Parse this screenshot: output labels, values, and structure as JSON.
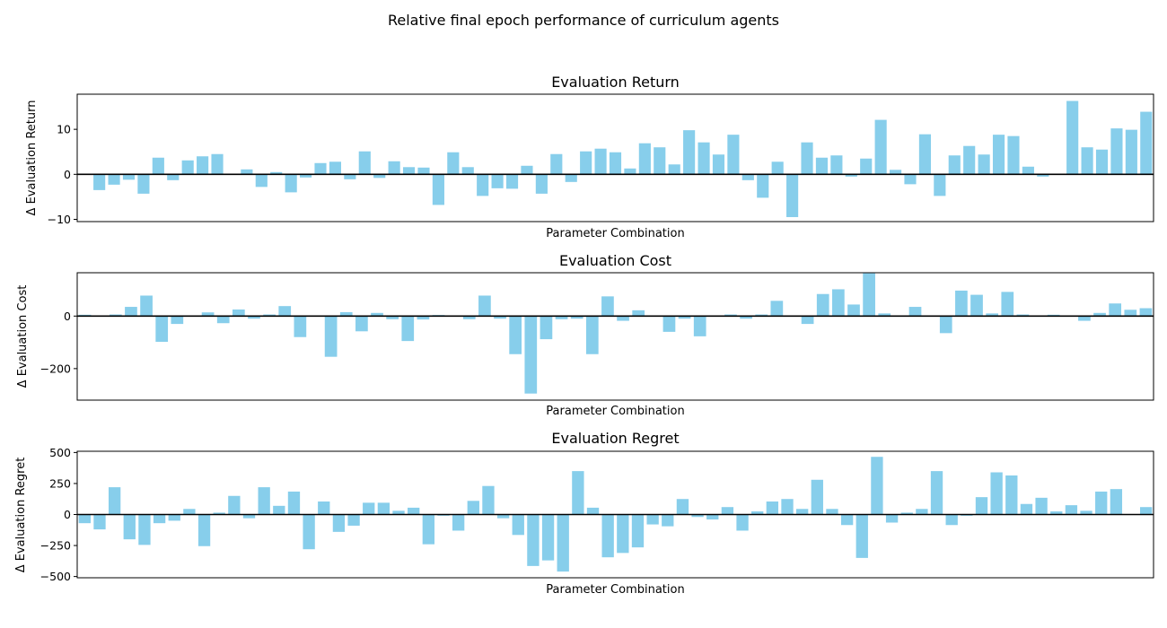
{
  "figure": {
    "suptitle": "Relative final epoch performance of curriculum agents",
    "bar_color": "#87CEEB"
  },
  "chart_data": [
    {
      "type": "bar",
      "title": "Evaluation Return",
      "xlabel": "Parameter Combination",
      "ylabel": "Δ Evaluation Return",
      "ylim": [
        -10.5,
        17.8
      ],
      "yticks": [
        -10,
        0,
        10
      ],
      "ytick_labels": [
        "−10",
        "0",
        "10"
      ],
      "values": [
        0,
        -3.5,
        -2.3,
        -1.2,
        -4.3,
        3.7,
        -1.3,
        3.1,
        4.0,
        4.5,
        0,
        1.1,
        -2.8,
        0.5,
        -4.0,
        -0.7,
        2.5,
        2.8,
        -1.1,
        5.1,
        -0.8,
        2.9,
        1.6,
        1.5,
        -6.8,
        4.9,
        1.6,
        -4.8,
        -3.1,
        -3.2,
        1.9,
        -4.3,
        4.5,
        -1.7,
        5.1,
        5.7,
        4.9,
        1.3,
        6.9,
        6.0,
        2.2,
        9.8,
        7.1,
        4.4,
        8.8,
        -1.3,
        -5.2,
        2.8,
        -9.5,
        7.1,
        3.7,
        4.2,
        -0.5,
        3.5,
        12.1,
        1.0,
        -2.2,
        8.9,
        -4.8,
        4.2,
        6.3,
        4.4,
        8.8,
        8.5,
        1.7,
        -0.5,
        0,
        16.3,
        6.0,
        5.5,
        10.2,
        9.9,
        13.9
      ]
    },
    {
      "type": "bar",
      "title": "Evaluation Cost",
      "xlabel": "Parameter Combination",
      "ylabel": "Δ Evaluation Cost",
      "ylim": [
        -320,
        165
      ],
      "yticks": [
        -200,
        0
      ],
      "ytick_labels": [
        "−200",
        "0"
      ],
      "values": [
        5,
        0,
        6,
        35,
        78,
        -98,
        -30,
        0,
        14,
        -27,
        25,
        -10,
        6,
        38,
        -80,
        0,
        -155,
        15,
        -58,
        12,
        -12,
        -95,
        -13,
        4,
        0,
        -12,
        78,
        -10,
        -145,
        -295,
        -88,
        -12,
        -10,
        -145,
        75,
        -18,
        22,
        0,
        -60,
        -10,
        -77,
        0,
        6,
        -10,
        6,
        58,
        0,
        -30,
        84,
        102,
        44,
        163,
        10,
        0,
        35,
        0,
        -65,
        97,
        81,
        10,
        92,
        6,
        0,
        5,
        0,
        -18,
        12,
        48,
        24,
        30
      ]
    },
    {
      "type": "bar",
      "title": "Evaluation Regret",
      "xlabel": "Parameter Combination",
      "ylabel": "Δ Evaluation Regret",
      "ylim": [
        -510,
        510
      ],
      "yticks": [
        -500,
        -250,
        0,
        250,
        500
      ],
      "ytick_labels": [
        "−500",
        "−250",
        "0",
        "250",
        "500"
      ],
      "values": [
        -70,
        -120,
        220,
        -200,
        -245,
        -70,
        -50,
        45,
        -255,
        15,
        150,
        -30,
        220,
        70,
        185,
        -280,
        105,
        -140,
        -90,
        95,
        95,
        30,
        55,
        -240,
        -10,
        -130,
        110,
        230,
        -30,
        -165,
        -415,
        -370,
        -460,
        350,
        55,
        -345,
        -310,
        -265,
        -80,
        -95,
        125,
        -20,
        -40,
        60,
        -130,
        25,
        105,
        125,
        45,
        280,
        45,
        -85,
        -350,
        465,
        -65,
        15,
        45,
        350,
        -85,
        -10,
        140,
        340,
        315,
        85,
        135,
        25,
        75,
        30,
        185,
        205,
        0,
        60
      ]
    }
  ]
}
